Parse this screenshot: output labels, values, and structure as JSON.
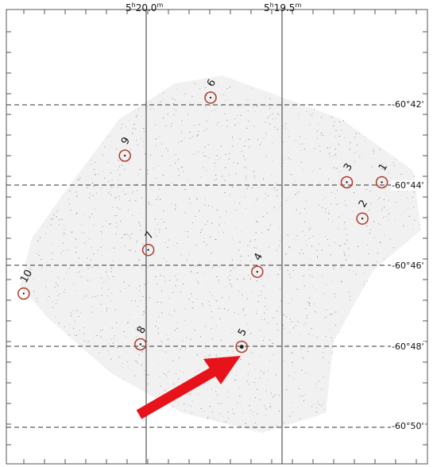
{
  "chart_data": {
    "type": "scatter",
    "title": "",
    "xlabel": "",
    "ylabel": "",
    "x_ticks": [
      "5h20.0m",
      "5h19.5m"
    ],
    "x_tick_labels": [
      {
        "main": "5",
        "sup1": "h",
        "sub": "20.0",
        "sup2": "m"
      },
      {
        "main": "5",
        "sup1": "h",
        "sub": "19.5",
        "sup2": "m"
      }
    ],
    "y_tick_labels": [
      "-60°42'",
      "-60°44'",
      "-60°46'",
      "-60°48'",
      "-60°50'"
    ],
    "grid": true,
    "points": [
      {
        "label": "1",
        "ra_frac": 0.94,
        "dec": -60.732
      },
      {
        "label": "2",
        "ra_frac": 0.89,
        "dec": -60.747
      },
      {
        "label": "3",
        "ra_frac": 0.85,
        "dec": -60.732
      },
      {
        "label": "4",
        "ra_frac": 0.62,
        "dec": -60.769
      },
      {
        "label": "5",
        "ra_frac": 0.58,
        "dec": -60.8
      },
      {
        "label": "6",
        "ra_frac": 0.5,
        "dec": -60.697
      },
      {
        "label": "7",
        "ra_frac": 0.34,
        "dec": -60.76
      },
      {
        "label": "8",
        "ra_frac": 0.32,
        "dec": -60.799
      },
      {
        "label": "9",
        "ra_frac": 0.28,
        "dec": -60.721
      },
      {
        "label": "10",
        "ra_frac": 0.02,
        "dec": -60.778
      }
    ],
    "highlighted": "5",
    "arrow_color": "#e8121a",
    "circle_color": "#b03a2e",
    "grid_color": "#333333"
  }
}
